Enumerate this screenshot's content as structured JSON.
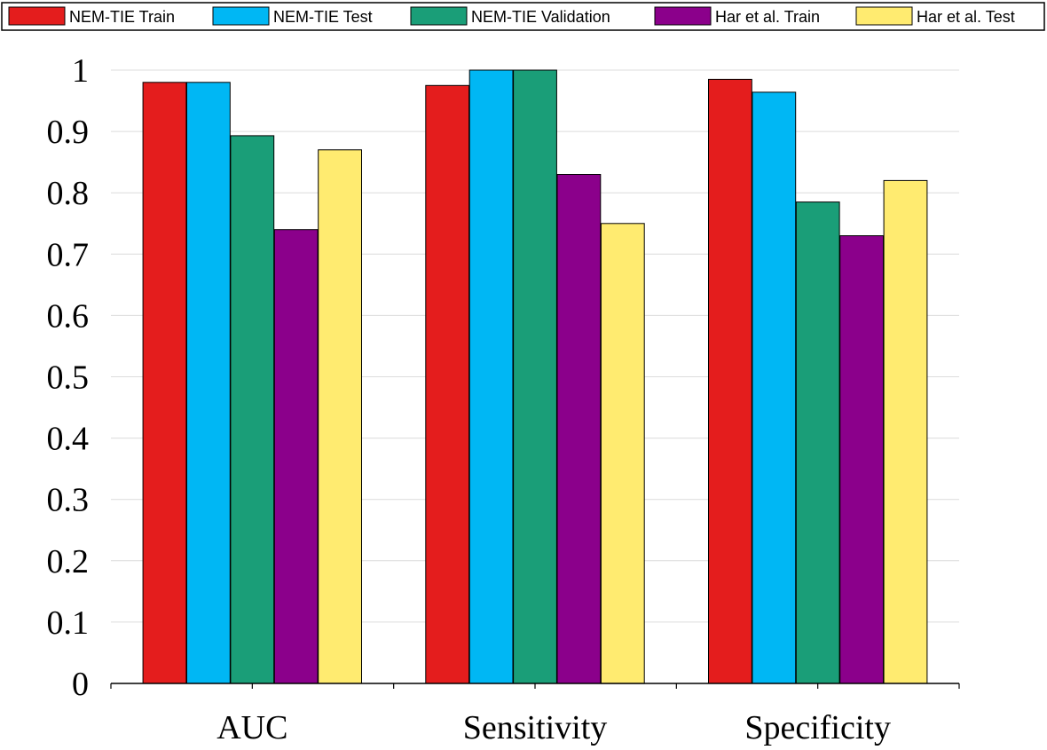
{
  "chart_data": {
    "type": "bar",
    "title": "",
    "xlabel": "",
    "ylabel": "",
    "ylim": [
      0,
      1
    ],
    "yticks": [
      "0",
      "0.1",
      "0.2",
      "0.3",
      "0.4",
      "0.5",
      "0.6",
      "0.7",
      "0.8",
      "0.9",
      "1"
    ],
    "grid": true,
    "legend_position": "top",
    "categories": [
      "AUC",
      "Sensitivity",
      "Specificity"
    ],
    "series": [
      {
        "name": "NEM-TIE Train",
        "color": "#e41d1d",
        "values": [
          0.98,
          0.975,
          0.985
        ]
      },
      {
        "name": "NEM-TIE Test",
        "color": "#00b7f4",
        "values": [
          0.98,
          1.0,
          0.964
        ]
      },
      {
        "name": "NEM-TIE Validation",
        "color": "#1a9e78",
        "values": [
          0.893,
          1.0,
          0.785
        ]
      },
      {
        "name": "Har et al. Train",
        "color": "#8b008b",
        "values": [
          0.74,
          0.83,
          0.73
        ]
      },
      {
        "name": "Har et al. Test",
        "color": "#ffeb70",
        "values": [
          0.87,
          0.75,
          0.82
        ]
      }
    ]
  }
}
